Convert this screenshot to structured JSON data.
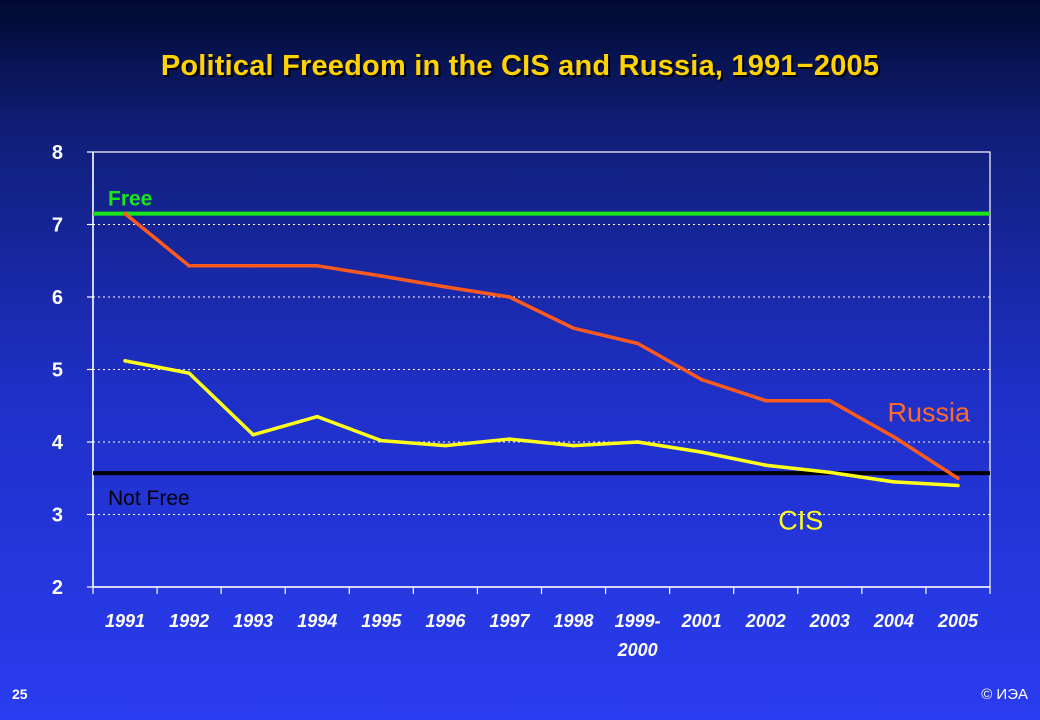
{
  "title": "Political Freedom in the CIS and Russia, 1991−2005",
  "page_number": "25",
  "copyright": "© ИЭА",
  "chart_data": {
    "type": "line",
    "categories": [
      "1991",
      "1992",
      "1993",
      "1994",
      "1995",
      "1996",
      "1997",
      "1998",
      "1999-2000",
      "2001",
      "2002",
      "2003",
      "2004",
      "2005"
    ],
    "category_labels": [
      [
        "1991"
      ],
      [
        "1992"
      ],
      [
        "1993"
      ],
      [
        "1994"
      ],
      [
        "1995"
      ],
      [
        "1996"
      ],
      [
        "1997"
      ],
      [
        "1998"
      ],
      [
        "1999-",
        "2000"
      ],
      [
        "2001"
      ],
      [
        "2002"
      ],
      [
        "2003"
      ],
      [
        "2004"
      ],
      [
        "2005"
      ]
    ],
    "series": [
      {
        "name": "Russia",
        "color": "#ff5a1e",
        "label_color": "#ff6a2a",
        "values": [
          7.15,
          6.43,
          6.43,
          6.43,
          6.29,
          6.14,
          6.0,
          5.57,
          5.36,
          4.86,
          4.57,
          4.57,
          4.07,
          3.5
        ]
      },
      {
        "name": "CIS",
        "color": "#ffff1a",
        "label_color": "#ffff1a",
        "values": [
          5.12,
          4.95,
          4.1,
          4.35,
          4.02,
          3.95,
          4.04,
          3.95,
          4.0,
          3.86,
          3.68,
          3.58,
          3.45,
          3.4
        ]
      }
    ],
    "reference_lines": [
      {
        "label": "Free",
        "value": 7.15,
        "color": "#19e619"
      },
      {
        "label": "Not Free",
        "value": 3.57,
        "color": "#000000"
      }
    ],
    "ylim": [
      2,
      8
    ],
    "yticks": [
      2,
      3,
      4,
      5,
      6,
      7,
      8
    ],
    "grid": true,
    "xlabel": "",
    "ylabel": ""
  }
}
